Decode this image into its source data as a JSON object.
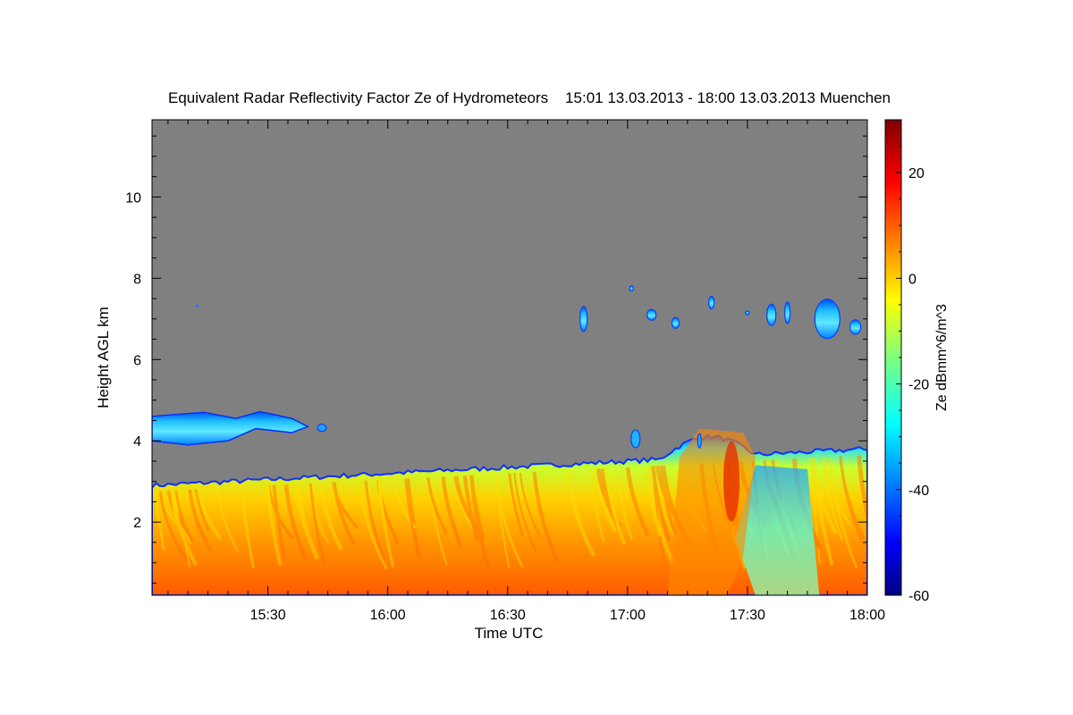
{
  "chart_data": {
    "type": "heatmap",
    "title": "Equivalent Radar Reflectivity Factor Ze of Hydrometeors    15:01 13.03.2013 - 18:00 13.03.2013 Muenchen",
    "xlabel": "Time UTC",
    "ylabel": "Height AGL km",
    "x_ticks": [
      "15:30",
      "16:00",
      "16:30",
      "17:00",
      "17:30",
      "18:00"
    ],
    "x_tick_minutes": [
      30,
      60,
      90,
      120,
      150,
      180
    ],
    "xlim_minutes_after_1500": [
      1,
      180
    ],
    "y_ticks": [
      2,
      4,
      6,
      8,
      10
    ],
    "ylim_km": [
      0.2,
      11.9
    ],
    "no_data_color": "#808080",
    "colorbar": {
      "label": "Ze dBmm^6/m^3",
      "ticks": [
        20,
        0,
        -20,
        -40,
        -60
      ],
      "range": [
        -60,
        30
      ],
      "colormap": "jet"
    },
    "features": [
      {
        "name": "low precipitating layer",
        "t_start_min": 1,
        "t_end_min": 180,
        "base_km": 0.2,
        "top_km_start": 2.9,
        "top_km_end": 3.8,
        "core_dbz": 10
      },
      {
        "name": "early mid-level cloud",
        "t_start_min": 1,
        "t_end_min": 45,
        "base_km": 3.9,
        "top_km": 4.7,
        "core_dbz": -25
      },
      {
        "name": "upper cloud patches",
        "t_start_min": 100,
        "t_end_min": 180,
        "base_km": 6.4,
        "top_km": 7.7,
        "core_dbz": -25
      },
      {
        "name": "convective cell",
        "t_start_min": 130,
        "t_end_min": 152,
        "base_km": 0.2,
        "top_km": 4.3,
        "core_dbz": 18
      }
    ]
  }
}
